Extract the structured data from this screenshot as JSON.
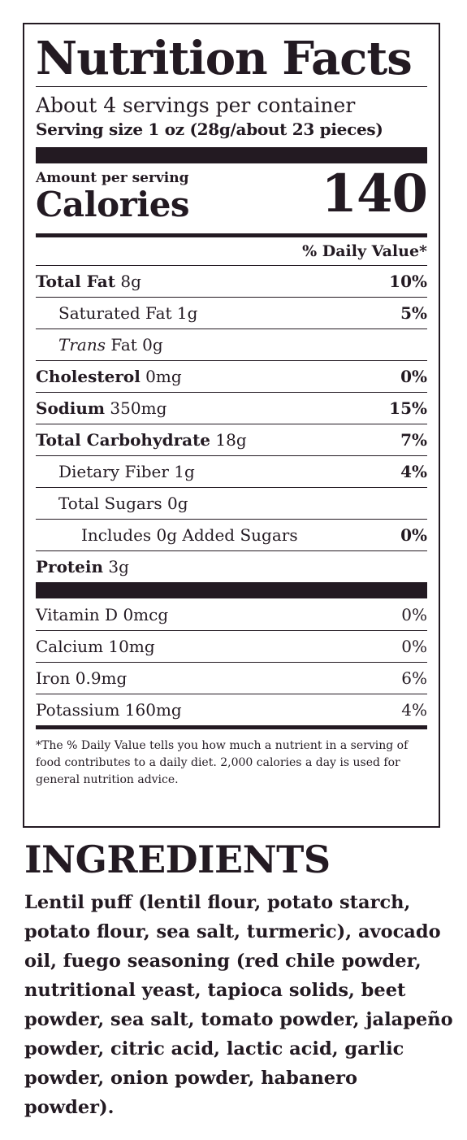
{
  "label": {
    "title": "Nutrition Facts",
    "servings": "About 4 servings per container",
    "serving_size": "Serving size 1 oz (28g/about 23 pieces)",
    "amount_per_serving": "Amount per serving",
    "calories_label": "Calories",
    "calories_value": "140",
    "dv_header": "% Daily Value*",
    "nutrients": [
      {
        "name": "Total Fat",
        "amount": " 8g",
        "dv": "10%"
      },
      {
        "name": "Saturated Fat",
        "amount": " 1g",
        "dv": "5%"
      },
      {
        "name": "Trans",
        "amount": " Fat 0g",
        "dv": ""
      },
      {
        "name": "Cholesterol",
        "amount": " 0mg",
        "dv": "0%"
      },
      {
        "name": "Sodium",
        "amount": " 350mg",
        "dv": "15%"
      },
      {
        "name": "Total Carbohydrate",
        "amount": " 18g",
        "dv": "7%"
      },
      {
        "name": "Dietary Fiber",
        "amount": " 1g",
        "dv": "4%"
      },
      {
        "name": "Total Sugars",
        "amount": " 0g",
        "dv": ""
      },
      {
        "name": "Includes 0g Added Sugars",
        "amount": "",
        "dv": "0%"
      },
      {
        "name": "Protein",
        "amount": " 3g",
        "dv": ""
      }
    ],
    "vitamins": [
      {
        "name": "Vitamin D 0mcg",
        "dv": "0%"
      },
      {
        "name": "Calcium 10mg",
        "dv": "0%"
      },
      {
        "name": "Iron 0.9mg",
        "dv": "6%"
      },
      {
        "name": "Potassium 160mg",
        "dv": "4%"
      }
    ],
    "footnote": "*The % Daily Value tells you how much a nutrient in a serving of food contributes to a daily diet. 2,000 calories a day is used for general nutrition advice."
  },
  "ingredients": {
    "title": "INGREDIENTS",
    "text": "Lentil puff (lentil flour, potato starch, potato flour, sea salt, turmeric), avocado oil, fuego seasoning (red chile powder, nutritional yeast, tapioca solids, beet powder, sea salt, tomato powder, jalapeño powder, citric acid, lactic acid, garlic powder, onion powder, habanero powder)."
  }
}
